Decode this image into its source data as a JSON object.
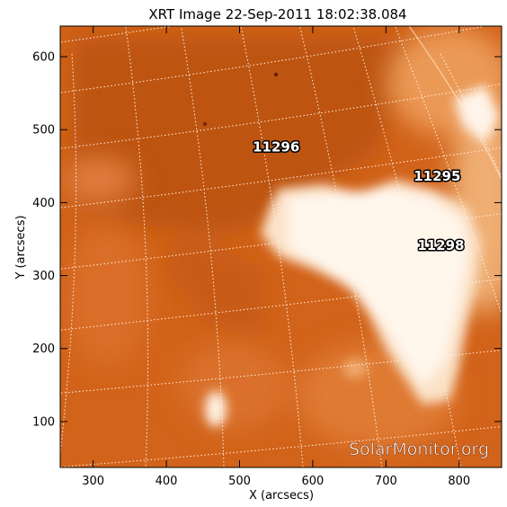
{
  "title": "XRT Image 22-Sep-2011 18:02:38.084",
  "x_axis": {
    "label": "X (arcsecs)",
    "range": [
      255,
      858
    ],
    "ticks": [
      300,
      400,
      500,
      600,
      700,
      800
    ]
  },
  "y_axis": {
    "label": "Y (arcsecs)",
    "range": [
      37,
      642
    ],
    "ticks": [
      100,
      200,
      300,
      400,
      500,
      600
    ]
  },
  "regions": [
    {
      "label": "11296",
      "x": 550,
      "y": 470
    },
    {
      "label": "11295",
      "x": 770,
      "y": 430
    },
    {
      "label": "11298",
      "x": 775,
      "y": 335
    }
  ],
  "watermark": "SolarMonitor.org",
  "colors": {
    "base": "#d2631a",
    "dark": "#b24a10",
    "bright": "#fff4e6",
    "grid": "#fff2e4",
    "axis": "#000000"
  }
}
